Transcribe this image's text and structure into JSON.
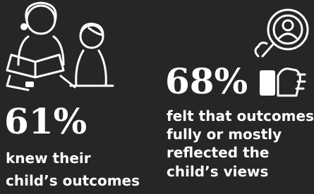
{
  "stats": [
    {
      "value": "61%",
      "lines": [
        "knew their",
        "child’s outcomes"
      ]
    },
    {
      "value": "68%",
      "lines": [
        "felt that outcomes",
        "fully or mostly",
        "reflected the",
        "child’s views"
      ]
    }
  ]
}
